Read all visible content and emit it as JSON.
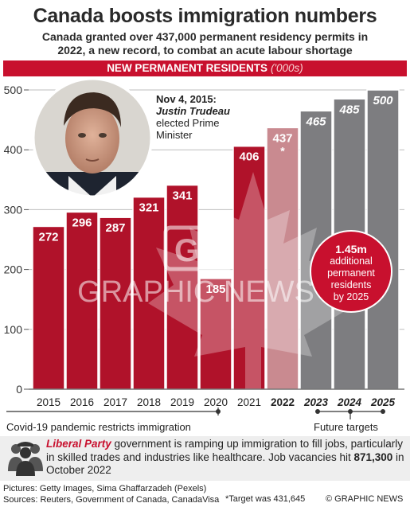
{
  "title": "Canada boosts immigration numbers",
  "subtitle_line1": "Canada granted over 437,000 permanent residency permits in",
  "subtitle_line2": "2022, a new record, to combat an acute labour shortage",
  "banner_title": "NEW PERMANENT RESIDENTS",
  "banner_unit": "('000s)",
  "note_date": "Nov 4, 2015:",
  "note_name": "Justin Trudeau",
  "note_line1": "elected Prime",
  "note_line2": "Minister",
  "callout_big": "1.45m",
  "callout_line1": "additional",
  "callout_line2": "permanent",
  "callout_line3": "residents",
  "callout_line4": "by 2025",
  "covid_label": "Covid-19 pandemic restricts immigration",
  "future_label": "Future targets",
  "watermark": "GRAPHIC NEWS",
  "info_party": "Liberal Party",
  "info_text_a": " government is ramping up immigration to fill jobs, particularly in skilled trades and industries like healthcare. Job vacancies hit ",
  "info_value": "871,300",
  "info_text_b": " in October 2022",
  "credits_line1": "Pictures: Getty Images, Sima Ghaffarzadeh (Pexels)",
  "credits_line2": "Sources: Reuters, Government of Canada, CanadaVisa",
  "target_note": "*Target was 431,645",
  "copyright": "© GRAPHIC NEWS",
  "colors": {
    "accent": "#c8102e",
    "bar_actual": "#b0122a",
    "bar_pale": "#c98a90",
    "bar_future": "#7d7d80"
  },
  "chart_data": {
    "type": "bar",
    "categories": [
      "2015",
      "2016",
      "2017",
      "2018",
      "2019",
      "2020",
      "2021",
      "2022",
      "2023",
      "2024",
      "2025"
    ],
    "values": [
      272,
      296,
      287,
      321,
      341,
      185,
      406,
      437,
      465,
      485,
      500
    ],
    "value_labels": [
      "272",
      "296",
      "287",
      "321",
      "341",
      "185",
      "406",
      "437",
      "465",
      "485",
      "500"
    ],
    "target_marker": "*",
    "bold_categories": [
      "2022",
      "2023",
      "2024",
      "2025"
    ],
    "future_categories": [
      "2023",
      "2024",
      "2025"
    ],
    "yticks": [
      "0",
      "100",
      "200",
      "300",
      "400",
      "500"
    ],
    "ylim": [
      0,
      500
    ],
    "grid": true
  }
}
